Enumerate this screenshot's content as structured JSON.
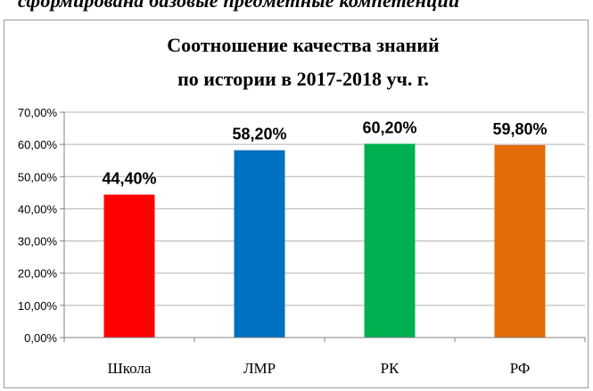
{
  "heading_fragment": "сформирована базовые предметные компетенции",
  "chart_data": {
    "type": "bar",
    "title_lines": [
      "Соотношение качества знаний",
      "по истории в 2017-2018 уч. г."
    ],
    "categories": [
      "Школа",
      "ЛМР",
      "РК",
      "РФ"
    ],
    "values": [
      44.4,
      58.2,
      60.2,
      59.8
    ],
    "data_labels": [
      "44,40%",
      "58,20%",
      "60,20%",
      "59,80%"
    ],
    "colors": [
      "#ff0000",
      "#0070c0",
      "#00b050",
      "#e36c09"
    ],
    "ylim": [
      0,
      70
    ],
    "yticks": [
      0,
      10,
      20,
      30,
      40,
      50,
      60,
      70
    ],
    "ytick_labels": [
      "0,00%",
      "10,00%",
      "20,00%",
      "30,00%",
      "40,00%",
      "50,00%",
      "60,00%",
      "70,00%"
    ],
    "grid": true,
    "legend": "none"
  }
}
